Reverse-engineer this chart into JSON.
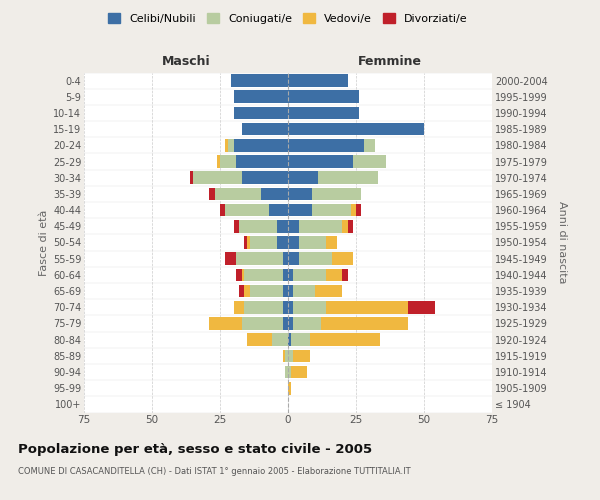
{
  "age_groups": [
    "100+",
    "95-99",
    "90-94",
    "85-89",
    "80-84",
    "75-79",
    "70-74",
    "65-69",
    "60-64",
    "55-59",
    "50-54",
    "45-49",
    "40-44",
    "35-39",
    "30-34",
    "25-29",
    "20-24",
    "15-19",
    "10-14",
    "5-9",
    "0-4"
  ],
  "birth_years": [
    "≤ 1904",
    "1905-1909",
    "1910-1914",
    "1915-1919",
    "1920-1924",
    "1925-1929",
    "1930-1934",
    "1935-1939",
    "1940-1944",
    "1945-1949",
    "1950-1954",
    "1955-1959",
    "1960-1964",
    "1965-1969",
    "1970-1974",
    "1975-1979",
    "1980-1984",
    "1985-1989",
    "1990-1994",
    "1995-1999",
    "2000-2004"
  ],
  "maschi_celibi": [
    0,
    0,
    0,
    0,
    0,
    2,
    2,
    2,
    2,
    2,
    4,
    4,
    7,
    10,
    17,
    19,
    20,
    17,
    20,
    20,
    21
  ],
  "maschi_coniugati": [
    0,
    0,
    1,
    1,
    6,
    15,
    14,
    12,
    14,
    17,
    10,
    14,
    16,
    17,
    18,
    6,
    2,
    0,
    0,
    0,
    0
  ],
  "maschi_vedovi": [
    0,
    0,
    0,
    1,
    9,
    12,
    4,
    2,
    1,
    0,
    1,
    0,
    0,
    0,
    0,
    1,
    1,
    0,
    0,
    0,
    0
  ],
  "maschi_divorziati": [
    0,
    0,
    0,
    0,
    0,
    0,
    0,
    2,
    2,
    4,
    1,
    2,
    2,
    2,
    1,
    0,
    0,
    0,
    0,
    0,
    0
  ],
  "femmine_nubili": [
    0,
    0,
    0,
    0,
    1,
    2,
    2,
    2,
    2,
    4,
    4,
    4,
    9,
    9,
    11,
    24,
    28,
    50,
    26,
    26,
    22
  ],
  "femmine_coniugate": [
    0,
    0,
    1,
    2,
    7,
    10,
    12,
    8,
    12,
    12,
    10,
    16,
    14,
    18,
    22,
    12,
    4,
    0,
    0,
    0,
    0
  ],
  "femmine_vedove": [
    0,
    1,
    6,
    6,
    26,
    32,
    30,
    10,
    6,
    8,
    4,
    2,
    2,
    0,
    0,
    0,
    0,
    0,
    0,
    0,
    0
  ],
  "femmine_divorziate": [
    0,
    0,
    0,
    0,
    0,
    0,
    10,
    0,
    2,
    0,
    0,
    2,
    2,
    0,
    0,
    0,
    0,
    0,
    0,
    0,
    0
  ],
  "color_celibi": "#3d6fa5",
  "color_coniugati": "#b8cca0",
  "color_vedovi": "#f0b840",
  "color_divorziati": "#c0202a",
  "xlim": 75,
  "title": "Popolazione per età, sesso e stato civile - 2005",
  "subtitle": "COMUNE DI CASACANDITELLA (CH) - Dati ISTAT 1° gennaio 2005 - Elaborazione TUTTITALIA.IT",
  "label_maschi": "Maschi",
  "label_femmine": "Femmine",
  "ylabel_left": "Fasce di età",
  "ylabel_right": "Anni di nascita",
  "legend_labels": [
    "Celibi/Nubili",
    "Coniugati/e",
    "Vedovi/e",
    "Divorziati/e"
  ],
  "bg_color": "#f0ede8",
  "plot_bg_color": "#ffffff"
}
